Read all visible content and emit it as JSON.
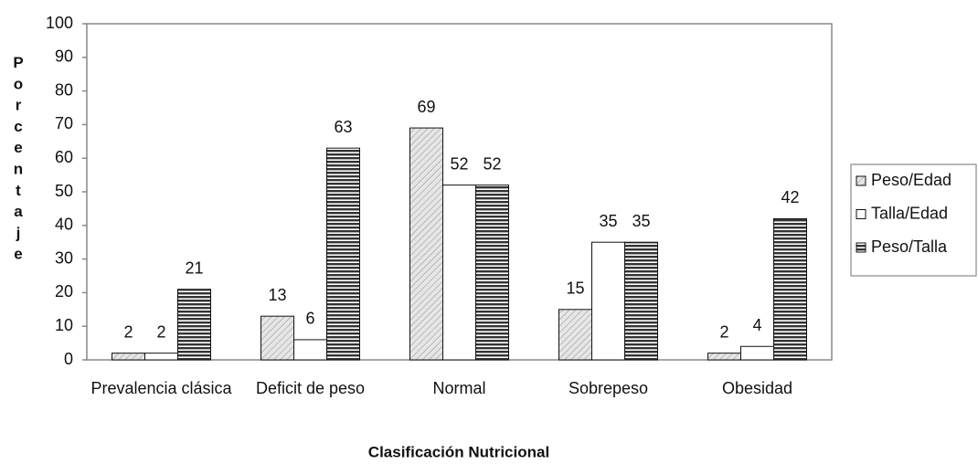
{
  "chart_data": {
    "type": "bar",
    "x_label": "Clasificación Nutricional",
    "y_label": "Porcentaje",
    "categories": [
      "Prevalencia clásica",
      "Deficit de peso",
      "Normal",
      "Sobrepeso",
      "Obesidad"
    ],
    "series": [
      {
        "name": "Peso/Edad",
        "color": "#d8d8d8",
        "pattern": "diagonal",
        "values": [
          2,
          13,
          69,
          15,
          2
        ]
      },
      {
        "name": "Talla/Edad",
        "color": "#ffffff",
        "pattern": "solid",
        "values": [
          2,
          6,
          52,
          35,
          4
        ]
      },
      {
        "name": "Peso/Talla",
        "color": "#333333",
        "pattern": "horizontal",
        "values": [
          21,
          63,
          52,
          35,
          42
        ]
      }
    ],
    "ylim": [
      0,
      100
    ],
    "yticks": [
      0,
      10,
      20,
      30,
      40,
      50,
      60,
      70,
      80,
      90,
      100
    ],
    "grid": false,
    "legend": "right"
  }
}
